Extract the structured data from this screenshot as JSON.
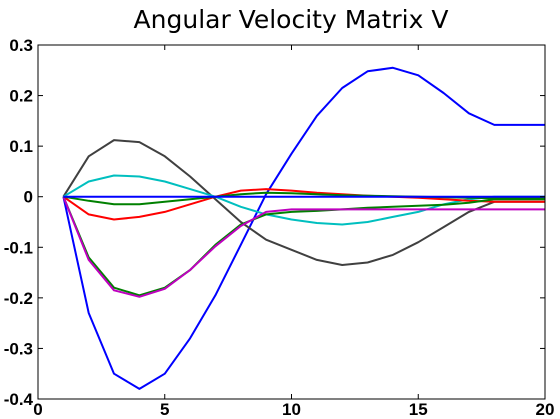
{
  "chart_data": {
    "type": "line",
    "title": "Angular Velocity Matrix V",
    "xlabel": "",
    "ylabel": "",
    "xlim": [
      0,
      20
    ],
    "ylim": [
      -0.4,
      0.3
    ],
    "xticks": [
      0,
      5,
      10,
      15,
      20
    ],
    "yticks": [
      0.3,
      0.2,
      0.1,
      0,
      -0.1,
      -0.2,
      -0.3,
      -0.4
    ],
    "xtick_labels": [
      "0",
      "5",
      "10",
      "15",
      "20"
    ],
    "ytick_labels": [
      "0.3",
      "0.2",
      "0.1",
      "0",
      "-0.1",
      "-0.2",
      "-0.3",
      "-0.4"
    ],
    "grid": false,
    "legend": "none",
    "x": [
      1,
      2,
      3,
      4,
      5,
      6,
      7,
      8,
      9,
      10,
      11,
      12,
      13,
      14,
      15,
      16,
      17,
      18,
      19,
      20
    ],
    "series": [
      {
        "color": "#0000ff",
        "values": [
          0,
          -0.23,
          -0.35,
          -0.38,
          -0.35,
          -0.28,
          -0.195,
          -0.095,
          0.005,
          0.085,
          0.16,
          0.215,
          0.248,
          0.255,
          0.24,
          0.205,
          0.165,
          0.142,
          0.142,
          0.142
        ]
      },
      {
        "color": "#404040",
        "values": [
          0,
          0.08,
          0.112,
          0.108,
          0.08,
          0.04,
          -0.005,
          -0.05,
          -0.085,
          -0.105,
          -0.125,
          -0.135,
          -0.13,
          -0.115,
          -0.09,
          -0.06,
          -0.03,
          -0.01,
          -0.01,
          -0.01
        ]
      },
      {
        "color": "#00bfbf",
        "values": [
          0,
          0.03,
          0.042,
          0.04,
          0.03,
          0.015,
          0,
          -0.02,
          -0.035,
          -0.045,
          -0.052,
          -0.055,
          -0.05,
          -0.04,
          -0.03,
          -0.015,
          -0.005,
          0,
          0,
          0
        ]
      },
      {
        "color": "#ff0000",
        "values": [
          0,
          -0.035,
          -0.045,
          -0.04,
          -0.03,
          -0.015,
          0,
          0.012,
          0.015,
          0.012,
          0.008,
          0.005,
          0.002,
          0,
          -0.002,
          -0.005,
          -0.008,
          -0.01,
          -0.01,
          -0.01
        ]
      },
      {
        "color": "#008000",
        "values": [
          0,
          -0.12,
          -0.18,
          -0.195,
          -0.18,
          -0.145,
          -0.095,
          -0.055,
          -0.035,
          -0.03,
          -0.028,
          -0.025,
          -0.022,
          -0.02,
          -0.018,
          -0.016,
          -0.012,
          -0.005,
          -0.005,
          -0.005
        ]
      },
      {
        "color": "#bf00bf",
        "values": [
          0,
          -0.125,
          -0.185,
          -0.198,
          -0.182,
          -0.145,
          -0.098,
          -0.058,
          -0.03,
          -0.025,
          -0.025,
          -0.025,
          -0.025,
          -0.025,
          -0.025,
          -0.025,
          -0.025,
          -0.025,
          -0.025,
          -0.025
        ]
      },
      {
        "color": "#008000",
        "values": [
          0,
          -0.008,
          -0.015,
          -0.015,
          -0.01,
          -0.005,
          0,
          0.005,
          0.008,
          0.007,
          0.005,
          0.003,
          0.002,
          0.001,
          0,
          -0.001,
          -0.002,
          -0.003,
          -0.003,
          -0.003
        ]
      },
      {
        "color": "#0000ff",
        "values": [
          0,
          0,
          0,
          0,
          0,
          0,
          0,
          0,
          0,
          0,
          0,
          0,
          0,
          0,
          0,
          0,
          0,
          0,
          0,
          0
        ]
      }
    ]
  }
}
